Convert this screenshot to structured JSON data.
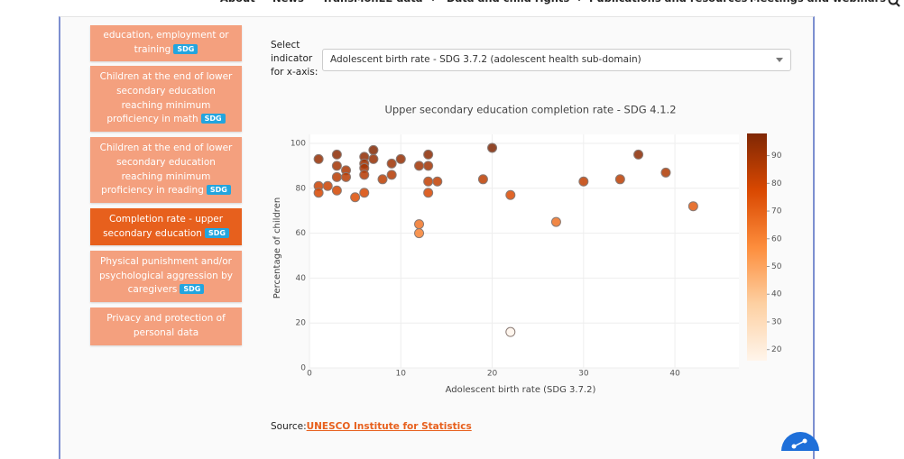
{
  "nav": {
    "items": [
      {
        "label": "About"
      },
      {
        "label": "News"
      },
      {
        "label": "TransMonEE data",
        "dropdown": true
      },
      {
        "label": "Data and child rights",
        "dropdown": true
      },
      {
        "label": "Publications and resources"
      },
      {
        "label": "Meetings and webinars"
      }
    ]
  },
  "sidebar": {
    "items": [
      {
        "label": "education, employment or training",
        "badge": "SDG"
      },
      {
        "label": "Children at the end of lower secondary education reaching minimum proficiency in math",
        "badge": "SDG"
      },
      {
        "label": "Children at the end of lower secondary education reaching minimum proficiency in reading",
        "badge": "SDG"
      },
      {
        "label": "Completion rate - upper secondary education",
        "badge": "SDG",
        "active": true
      },
      {
        "label": "Physical punishment and/or psychological aggression by caregivers",
        "badge": "SDG"
      },
      {
        "label": "Privacy and protection of personal data"
      }
    ]
  },
  "selector": {
    "label": "Select indicator for x-axis:",
    "value": "Adolescent birth rate - SDG 3.7.2 (adolescent health sub-domain)"
  },
  "chart_data": {
    "type": "scatter",
    "title": "Upper secondary education completion rate - SDG 4.1.2",
    "x_label": "Adolescent birth rate (SDG 3.7.2)",
    "y_label": "Percentage of children",
    "x": [
      1,
      1,
      1,
      2,
      3,
      3,
      3,
      3,
      4,
      4,
      5,
      6,
      6,
      6,
      6,
      6,
      7,
      7,
      8,
      9,
      9,
      10,
      12,
      12,
      12,
      13,
      13,
      13,
      13,
      14,
      19,
      20,
      22,
      22,
      27,
      30,
      34,
      36,
      39,
      42
    ],
    "y": [
      93,
      81,
      78,
      81,
      95,
      90,
      85,
      79,
      88,
      85,
      76,
      94,
      91,
      89,
      86,
      78,
      97,
      93,
      84,
      91,
      86,
      93,
      90,
      64,
      60,
      95,
      90,
      83,
      78,
      83,
      84,
      98,
      77,
      16,
      65,
      83,
      84,
      95,
      87,
      72
    ],
    "xlim": [
      0,
      47
    ],
    "ylim": [
      0,
      104
    ],
    "xticks": [
      0,
      10,
      20,
      30,
      40
    ],
    "yticks": [
      0,
      20,
      40,
      60,
      80,
      100
    ],
    "grid": true,
    "colorbar": {
      "lim": [
        16,
        98
      ],
      "ticks": [
        20,
        30,
        40,
        50,
        60,
        70,
        80,
        90
      ],
      "colors": [
        "#fff5eb",
        "#fdd0a2",
        "#fd8d3c",
        "#d94801",
        "#7f2704"
      ]
    }
  },
  "source": {
    "label": "Source:",
    "link": "UNESCO Institute for Statistics"
  }
}
